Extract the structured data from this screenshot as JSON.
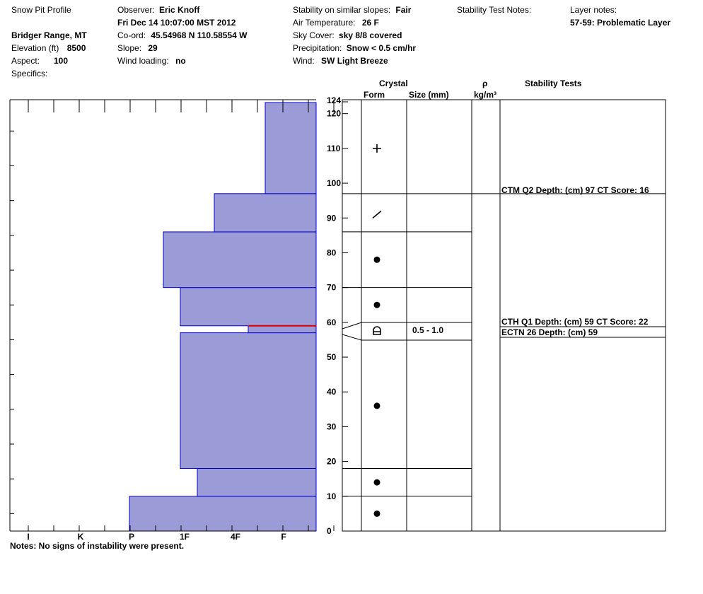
{
  "header": {
    "title": "Snow Pit Profile",
    "location": "Bridger Range, MT",
    "elevation_label": "Elevation (ft)",
    "elevation_value": "8500",
    "aspect_label": "Aspect:",
    "aspect_value": "100",
    "specifics_label": "Specifics:",
    "observer_label": "Observer:",
    "observer_value": "Eric Knoff",
    "datetime": "Fri Dec 14 10:07:00 MST 2012",
    "coord_label": "Co-ord:",
    "coord_value": "45.54968 N 110.58554 W",
    "slope_label": "Slope:",
    "slope_value": "29",
    "wind_loading_label": "Wind loading:",
    "wind_loading_value": "no",
    "stability_label": "Stability on similar slopes:",
    "stability_value": "Fair",
    "air_temp_label": "Air Temperature:",
    "air_temp_value": "26 F",
    "sky_label": "Sky Cover:",
    "sky_value": "sky 8/8 covered",
    "precip_label": "Precipitation:",
    "precip_value": "Snow < 0.5 cm/hr",
    "wind_label": "Wind:",
    "wind_value": "SW Light Breeze",
    "stability_notes_label": "Stability Test Notes:",
    "layer_notes_label": "Layer notes:",
    "layer_notes_value": "57-59: Problematic Layer"
  },
  "columns": {
    "crystal": "Crystal",
    "form": "Form",
    "size": "Size (mm)",
    "rho": "ρ",
    "density_unit": "kg/m³",
    "stability_tests": "Stability Tests"
  },
  "notes": "Notes:  No signs of instability were present.",
  "colors": {
    "hardness_fill": "#9b9bd8",
    "hardness_edge": "#0000cc",
    "problem_line": "#dd0000"
  },
  "chart_data": {
    "type": "bar",
    "orientation": "horizontal",
    "x_axis": {
      "tick_labels": [
        "I",
        "K",
        "P",
        "1F",
        "4F",
        "F"
      ]
    },
    "y_axis": {
      "min": 0,
      "max": 124,
      "top_label": "124",
      "tick_labels": [
        "0",
        "10",
        "20",
        "30",
        "40",
        "50",
        "60",
        "70",
        "80",
        "90",
        "100",
        "110",
        "120"
      ]
    },
    "hardness_layers": [
      {
        "bottom": 0,
        "top": 10,
        "hardness": "P+"
      },
      {
        "bottom": 10,
        "top": 18,
        "hardness": "1F-"
      },
      {
        "bottom": 18,
        "top": 57,
        "hardness": "1F"
      },
      {
        "bottom": 57,
        "top": 59,
        "hardness": "4F+"
      },
      {
        "bottom": 59,
        "top": 70,
        "hardness": "1F"
      },
      {
        "bottom": 70,
        "top": 86,
        "hardness": "1F+"
      },
      {
        "bottom": 86,
        "top": 97,
        "hardness": "4F"
      },
      {
        "bottom": 97,
        "top": 124,
        "hardness": "F+"
      }
    ],
    "problem_layer_depth": 59,
    "layer_boundaries": [
      10,
      18,
      57,
      59,
      70,
      86,
      97
    ],
    "crystal_forms": [
      {
        "depth": 5,
        "form": "rounded",
        "icon": "filled-circle-icon"
      },
      {
        "depth": 14,
        "form": "rounded",
        "icon": "filled-circle-icon"
      },
      {
        "depth": 36,
        "form": "rounded",
        "icon": "filled-circle-icon"
      },
      {
        "depth": 58,
        "form": "depth hoar",
        "icon": "depth-hoar-icon",
        "size": "0.5 - 1.0"
      },
      {
        "depth": 65,
        "form": "rounded",
        "icon": "filled-circle-icon"
      },
      {
        "depth": 78,
        "form": "rounded",
        "icon": "filled-circle-icon"
      },
      {
        "depth": 91,
        "form": "decomposing fragments",
        "icon": "slash-icon"
      },
      {
        "depth": 110,
        "form": "new snow",
        "icon": "plus-icon"
      }
    ],
    "stability_tests": [
      {
        "depth": 97,
        "text": "CTM Q2 Depth: (cm) 97 CT Score: 16"
      },
      {
        "depth": 59,
        "text": "CTH Q1 Depth: (cm) 59 CT Score: 22"
      },
      {
        "depth": 59,
        "text": "ECTN 26  Depth: (cm) 59"
      }
    ]
  }
}
